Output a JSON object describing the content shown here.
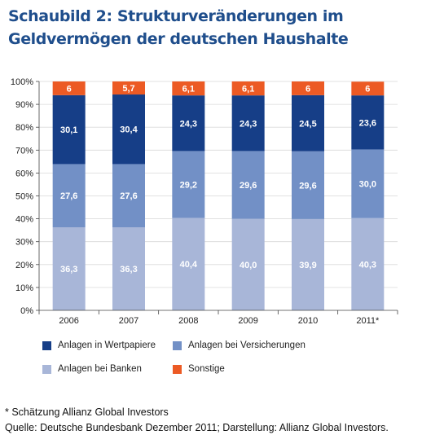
{
  "title": "Schaubild 2: Strukturveränderungen im Geldvermögen der deutschen Haushalte",
  "chart_data": {
    "type": "bar",
    "stacked": true,
    "categories": [
      "2006",
      "2007",
      "2008",
      "2009",
      "2010",
      "2011*"
    ],
    "series": [
      {
        "name": "Anlagen bei Banken",
        "values": [
          36.3,
          36.3,
          40.4,
          40.0,
          39.9,
          40.3
        ],
        "labels": [
          "36,3",
          "36,3",
          "40,4",
          "40,0",
          "39,9",
          "40,3"
        ],
        "color": "#a8b6d8"
      },
      {
        "name": "Anlagen bei Versicherungen",
        "values": [
          27.6,
          27.6,
          29.2,
          29.6,
          29.6,
          30.0
        ],
        "labels": [
          "27,6",
          "27,6",
          "29,2",
          "29,6",
          "29,6",
          "30,0"
        ],
        "color": "#7290c6"
      },
      {
        "name": "Anlagen in Wertpapiere",
        "values": [
          30.1,
          30.4,
          24.3,
          24.3,
          24.5,
          23.6
        ],
        "labels": [
          "30,1",
          "30,4",
          "24,3",
          "24,3",
          "24,5",
          "23,6"
        ],
        "color": "#163e87"
      },
      {
        "name": "Sonstige",
        "values": [
          6,
          5.7,
          6.1,
          6.1,
          6,
          6
        ],
        "labels": [
          "6",
          "5,7",
          "6,1",
          "6,1",
          "6",
          "6"
        ],
        "color": "#ec5a24"
      }
    ],
    "ylim": [
      0,
      100
    ],
    "yticks": [
      "0%",
      "10%",
      "20%",
      "30%",
      "40%",
      "50%",
      "60%",
      "70%",
      "80%",
      "90%",
      "100%"
    ],
    "legend_position": "bottom",
    "legend": [
      {
        "name": "Anlagen in Wertpapiere",
        "color": "#163e87"
      },
      {
        "name": "Anlagen bei Versicherungen",
        "color": "#7290c6"
      },
      {
        "name": "Anlagen bei Banken",
        "color": "#a8b6d8"
      },
      {
        "name": "Sonstige",
        "color": "#ec5a24"
      }
    ]
  },
  "footer": {
    "note": "* Schätzung Allianz Global Investors",
    "source": "Quelle: Deutsche Bundesbank Dezember 2011; Darstellung: Allianz Global Investors."
  }
}
